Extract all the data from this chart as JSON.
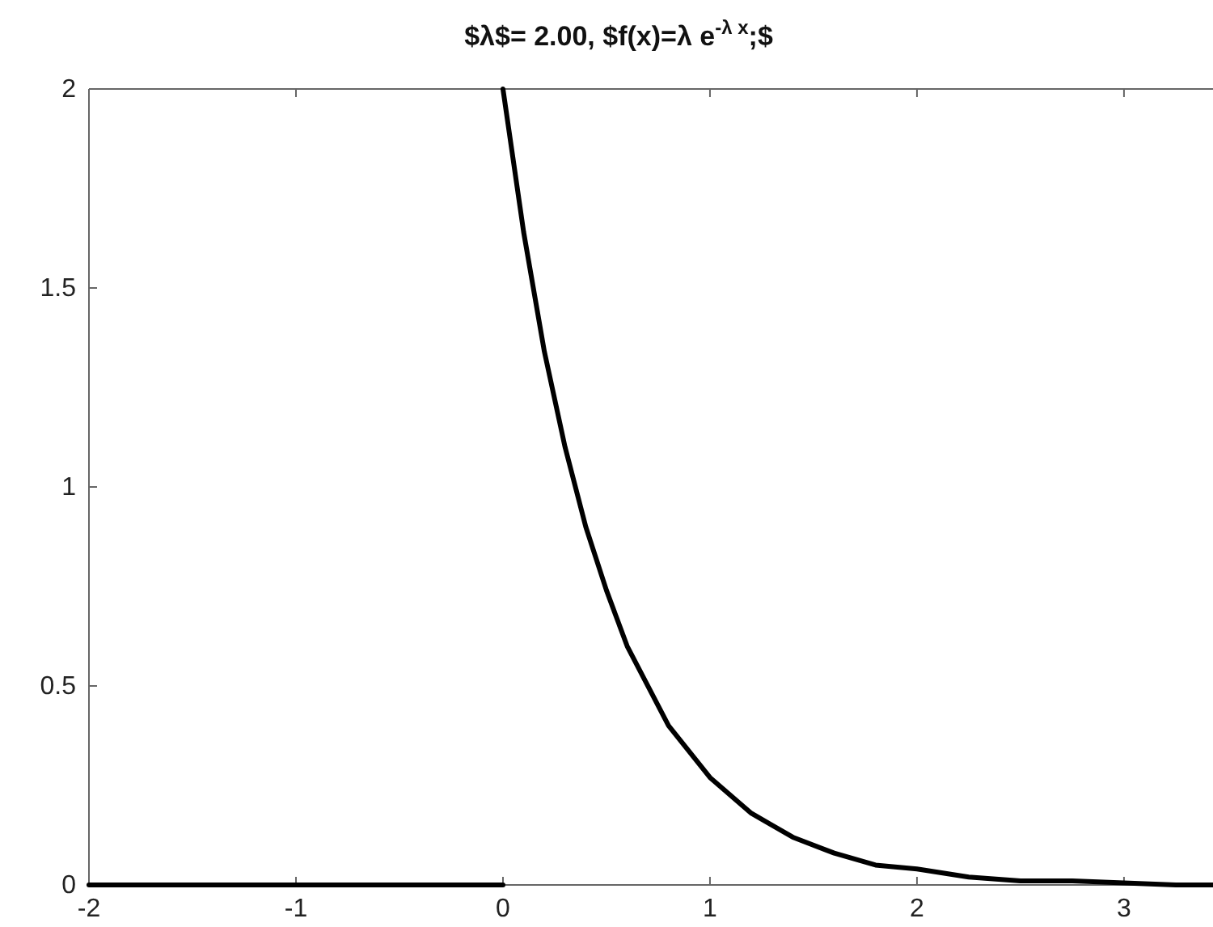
{
  "chart_data": {
    "type": "line",
    "title": "$λ$= 2.00, $f(x)=λ e$^{-λ x}$;$",
    "xlim": [
      -2,
      3.43
    ],
    "xticks": [
      -2,
      -1,
      0,
      1,
      2,
      3
    ],
    "ylim": [
      0,
      2
    ],
    "yticks": [
      0,
      0.5,
      1,
      1.5,
      2
    ],
    "marker": "none",
    "line_style": "solid",
    "series": [
      {
        "color": "#000000",
        "x": [
          -2,
          0
        ],
        "values": [
          0,
          0
        ]
      },
      {
        "color": "#000000",
        "x": [
          0,
          0.1,
          0.2,
          0.3,
          0.4,
          0.5,
          0.6,
          0.8,
          1,
          1.2,
          1.4,
          1.6,
          1.8,
          2,
          2.25,
          2.5,
          2.75,
          3,
          3.25,
          3.43
        ],
        "values": [
          2,
          1.64,
          1.34,
          1.1,
          0.9,
          0.74,
          0.6,
          0.4,
          0.27,
          0.18,
          0.12,
          0.08,
          0.05,
          0.04,
          0.02,
          0.01,
          0.01,
          0.005,
          0,
          0
        ]
      }
    ]
  }
}
